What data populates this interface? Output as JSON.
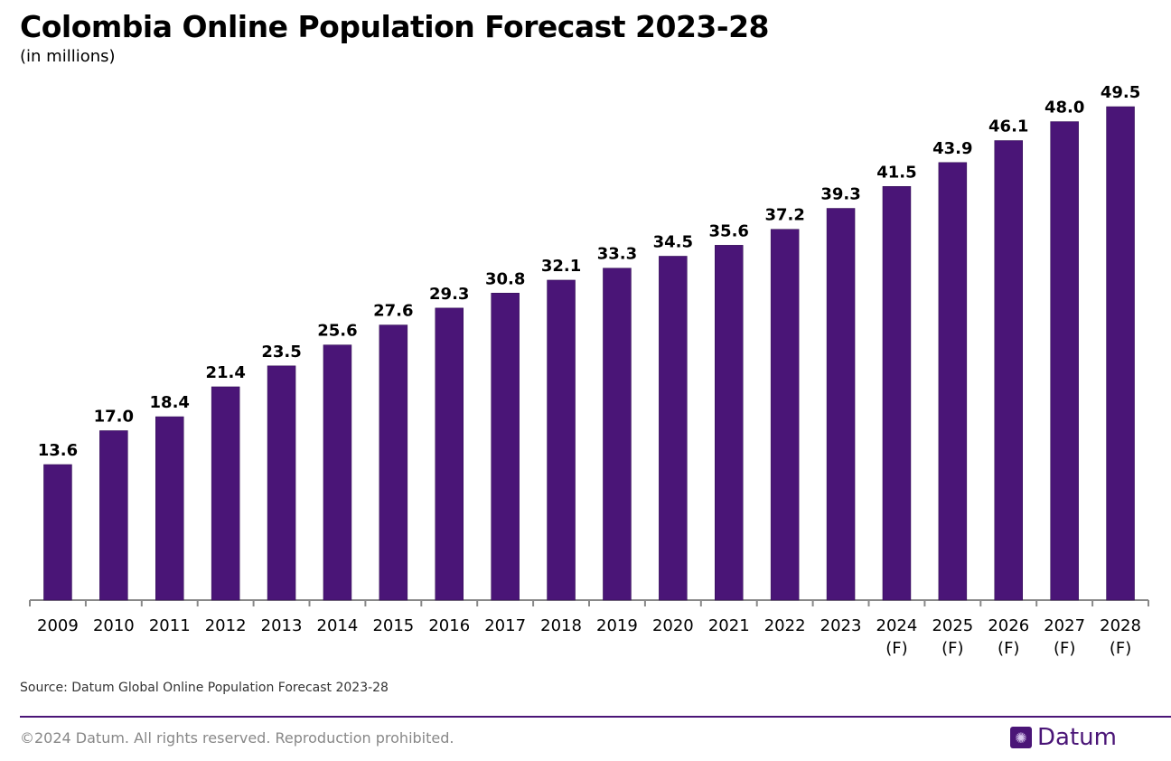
{
  "chart_data": {
    "type": "bar",
    "title": "Colombia Online Population Forecast 2023-28",
    "subtitle": "(in millions)",
    "categories": [
      "2009",
      "2010",
      "2011",
      "2012",
      "2013",
      "2014",
      "2015",
      "2016",
      "2017",
      "2018",
      "2019",
      "2020",
      "2021",
      "2022",
      "2023",
      "2024\n(F)",
      "2025\n(F)",
      "2026\n(F)",
      "2027\n(F)",
      "2028\n(F)"
    ],
    "values": [
      13.6,
      17.0,
      18.4,
      21.4,
      23.5,
      25.6,
      27.6,
      29.3,
      30.8,
      32.1,
      33.3,
      34.5,
      35.6,
      37.2,
      39.3,
      41.5,
      43.9,
      46.1,
      48.0,
      49.5
    ],
    "xlabel": "",
    "ylabel": "",
    "ylim": [
      0,
      50
    ],
    "grid": false,
    "bar_color": "#4a1577"
  },
  "footer": {
    "source": "Source: Datum Global Online Population Forecast 2023-28",
    "copyright": "©2024 Datum. All rights reserved. Reproduction prohibited.",
    "logo_text": "Datum"
  }
}
